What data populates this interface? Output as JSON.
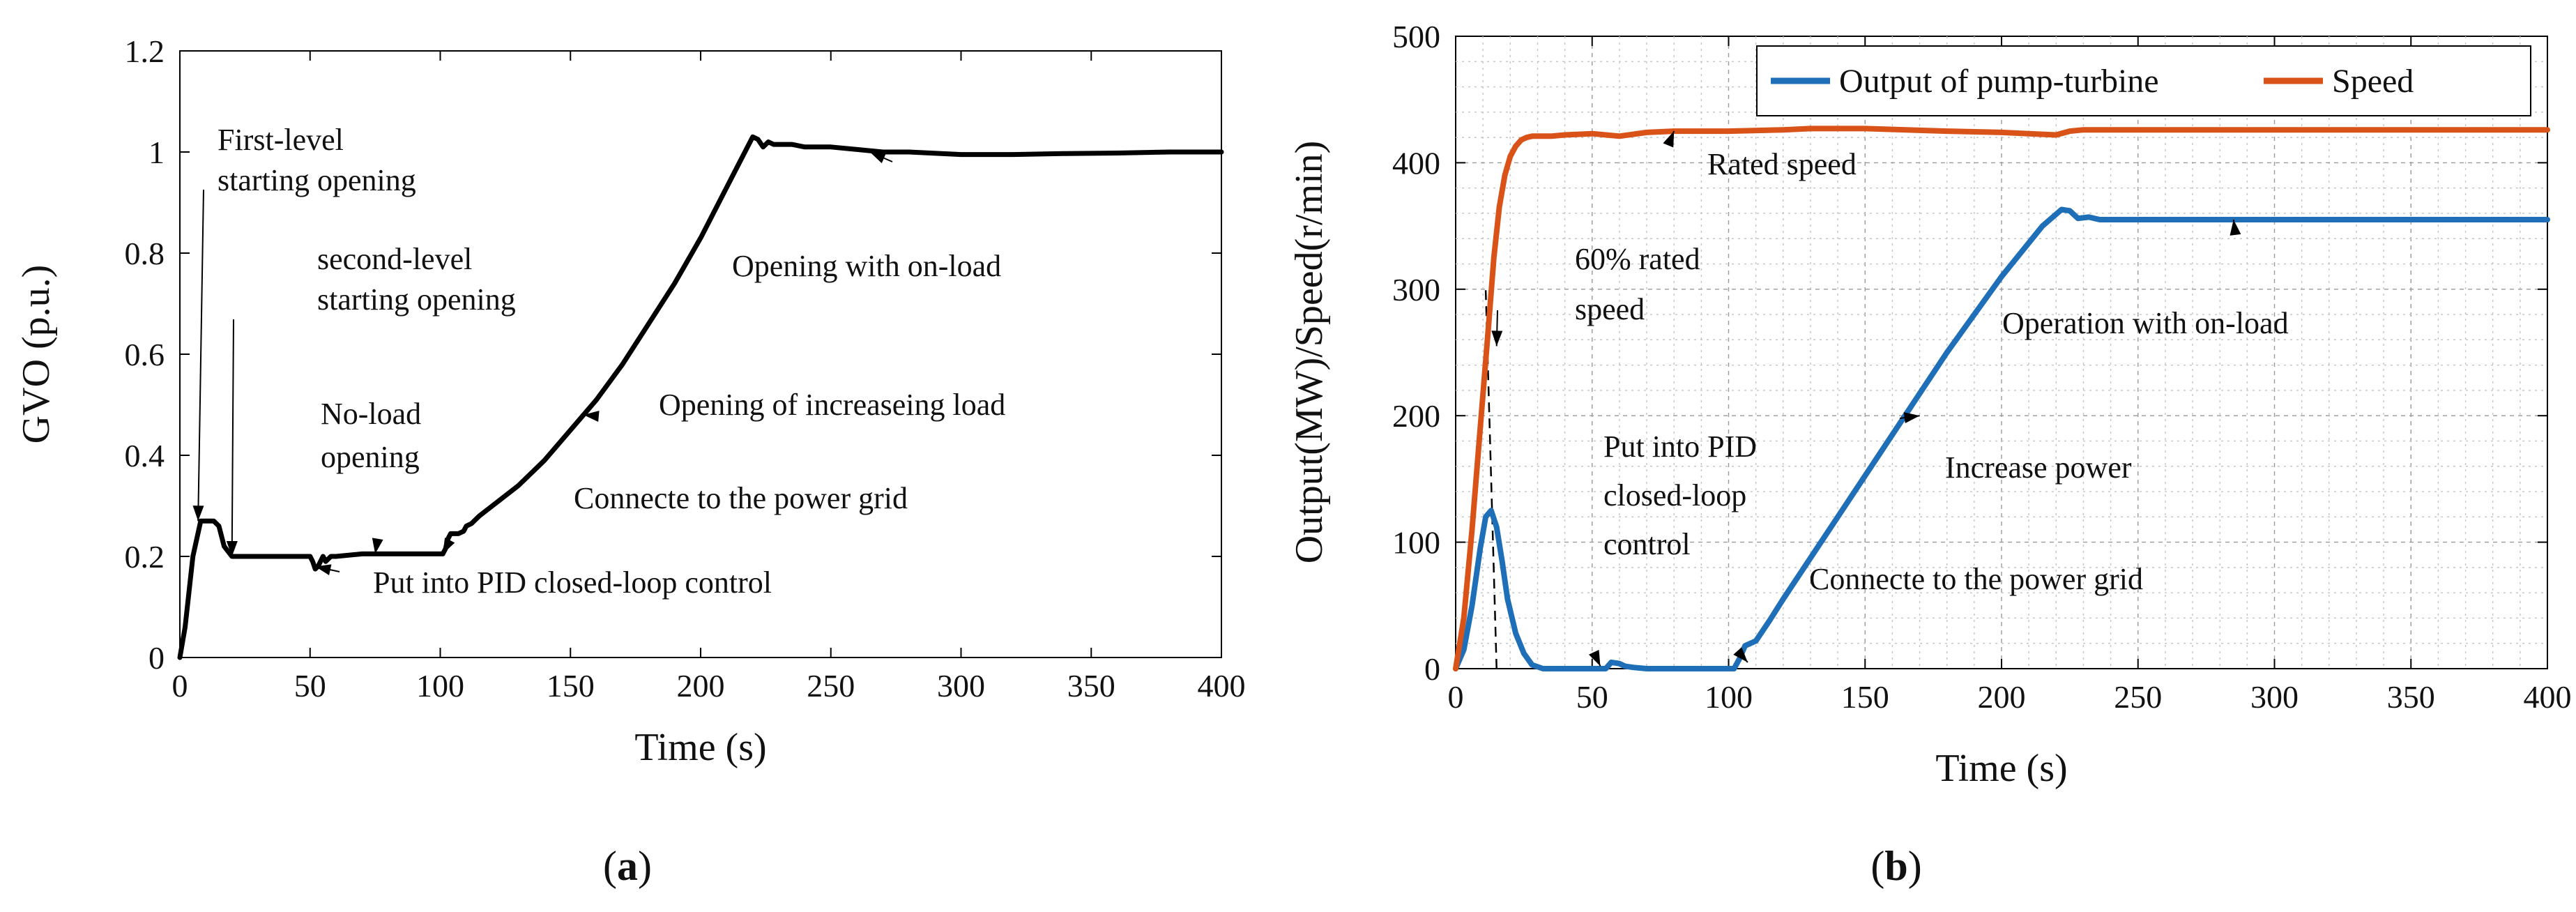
{
  "figure": {
    "panel_a_label": {
      "open": "(",
      "letter": "a",
      "close": ")"
    },
    "panel_b_label": {
      "open": "(",
      "letter": "b",
      "close": ")"
    }
  },
  "chart_data": [
    {
      "id": "a",
      "type": "line",
      "title": "",
      "xlabel": "Time (s)",
      "ylabel": "GVO (p.u.)",
      "xlim": [
        0,
        400
      ],
      "ylim": [
        0,
        1.2
      ],
      "xticks": [
        "0",
        "50",
        "100",
        "150",
        "200",
        "250",
        "300",
        "350",
        "400"
      ],
      "yticks": [
        "0",
        "0.2",
        "0.4",
        "0.6",
        "0.8",
        "1",
        "1.2"
      ],
      "grid": false,
      "series": [
        {
          "name": "GVO",
          "color": "#000000",
          "x": [
            0,
            2,
            5,
            8,
            10,
            13,
            15,
            17,
            20,
            30,
            40,
            50,
            51,
            52,
            53,
            54,
            55,
            56,
            58,
            60,
            70,
            80,
            90,
            100,
            101,
            102,
            103,
            104,
            105,
            107,
            109,
            110,
            112,
            115,
            120,
            130,
            140,
            150,
            160,
            170,
            180,
            190,
            200,
            210,
            215,
            220,
            222,
            224,
            226,
            228,
            230,
            235,
            240,
            250,
            260,
            270,
            280,
            300,
            320,
            340,
            360,
            380,
            400
          ],
          "y": [
            0,
            0.06,
            0.2,
            0.27,
            0.27,
            0.27,
            0.26,
            0.22,
            0.2,
            0.2,
            0.2,
            0.2,
            0.19,
            0.175,
            0.18,
            0.19,
            0.2,
            0.19,
            0.2,
            0.2,
            0.205,
            0.205,
            0.205,
            0.205,
            0.205,
            0.215,
            0.235,
            0.245,
            0.245,
            0.245,
            0.25,
            0.26,
            0.265,
            0.28,
            0.3,
            0.34,
            0.39,
            0.45,
            0.51,
            0.58,
            0.66,
            0.74,
            0.83,
            0.93,
            0.98,
            1.03,
            1.025,
            1.01,
            1.02,
            1.015,
            1.015,
            1.015,
            1.01,
            1.01,
            1.005,
            1.0,
            1.0,
            0.995,
            0.995,
            0.997,
            0.998,
            1.0,
            1.0
          ]
        }
      ],
      "annotations": [
        {
          "lines": [
            "First-level",
            "starting opening"
          ],
          "point": [
            7,
            0.27
          ]
        },
        {
          "lines": [
            "second-level",
            "starting opening"
          ],
          "point": [
            20,
            0.2
          ]
        },
        {
          "lines": [
            "No-load",
            "opening"
          ],
          "point": [
            75,
            0.205
          ]
        },
        {
          "lines": [
            "Put into PID closed-loop control"
          ],
          "point": [
            52,
            0.18
          ]
        },
        {
          "lines": [
            "Connecte to the power grid"
          ],
          "point": [
            101,
            0.205
          ]
        },
        {
          "lines": [
            "Opening of increaseing load"
          ],
          "point": [
            155,
            0.48
          ]
        },
        {
          "lines": [
            "Opening with on-load"
          ],
          "point": [
            265,
            1.0
          ]
        }
      ]
    },
    {
      "id": "b",
      "type": "line",
      "title": "",
      "xlabel": "Time (s)",
      "ylabel": "Output(MW)/Speed(r/min)",
      "xlim": [
        0,
        400
      ],
      "ylim": [
        0,
        500
      ],
      "xticks": [
        "0",
        "50",
        "100",
        "150",
        "200",
        "250",
        "300",
        "350",
        "400"
      ],
      "yticks": [
        "0",
        "100",
        "200",
        "300",
        "400",
        "500"
      ],
      "grid": true,
      "legend": "top",
      "series": [
        {
          "name": "Output of pump-turbine",
          "color": "#1f6fb8",
          "x": [
            0,
            3,
            6,
            9,
            11,
            13,
            15,
            17,
            19,
            22,
            25,
            28,
            32,
            40,
            50,
            55,
            57,
            60,
            62,
            65,
            70,
            80,
            90,
            100,
            102,
            104,
            106,
            108,
            110,
            115,
            120,
            140,
            160,
            180,
            200,
            215,
            222,
            225,
            228,
            232,
            236,
            240,
            260,
            300,
            350,
            400
          ],
          "y": [
            0,
            15,
            50,
            95,
            120,
            125,
            112,
            85,
            55,
            28,
            12,
            3,
            0,
            0,
            0,
            0,
            5,
            4,
            2,
            1,
            0,
            0,
            0,
            0,
            0,
            8,
            18,
            20,
            22,
            38,
            55,
            120,
            185,
            250,
            310,
            350,
            363,
            362,
            356,
            357,
            355,
            355,
            355,
            355,
            355,
            355
          ]
        },
        {
          "name": "Speed",
          "color": "#d95319",
          "x": [
            0,
            3,
            6,
            9,
            12,
            14,
            16,
            18,
            20,
            22,
            24,
            26,
            28,
            30,
            35,
            40,
            50,
            60,
            70,
            80,
            100,
            120,
            130,
            150,
            180,
            200,
            210,
            220,
            225,
            230,
            250,
            300,
            350,
            400
          ],
          "y": [
            0,
            40,
            110,
            190,
            270,
            325,
            365,
            390,
            405,
            413,
            418,
            420,
            421,
            421,
            421,
            422,
            423,
            421,
            424,
            425,
            425,
            426,
            427,
            427,
            425,
            424,
            423,
            422,
            425,
            426,
            426,
            426,
            426,
            426
          ]
        }
      ],
      "annotations": [
        {
          "lines": [
            "Rated speed"
          ],
          "point": [
            80,
            425
          ]
        },
        {
          "lines": [
            "60% rated",
            "speed"
          ],
          "point": [
            15,
            255
          ]
        },
        {
          "lines": [
            "Operation with on-load"
          ],
          "point": [
            285,
            355
          ]
        },
        {
          "lines": [
            "Increase power"
          ],
          "point": [
            170,
            200
          ]
        },
        {
          "lines": [
            "Put into PID",
            "closed-loop",
            "control"
          ],
          "point": [
            53,
            2
          ]
        },
        {
          "lines": [
            "Connecte to the power grid"
          ],
          "point": [
            107,
            5
          ]
        }
      ],
      "guide_line": {
        "label": "",
        "from": [
          15,
          0
        ],
        "to": [
          11,
          300
        ]
      }
    }
  ]
}
